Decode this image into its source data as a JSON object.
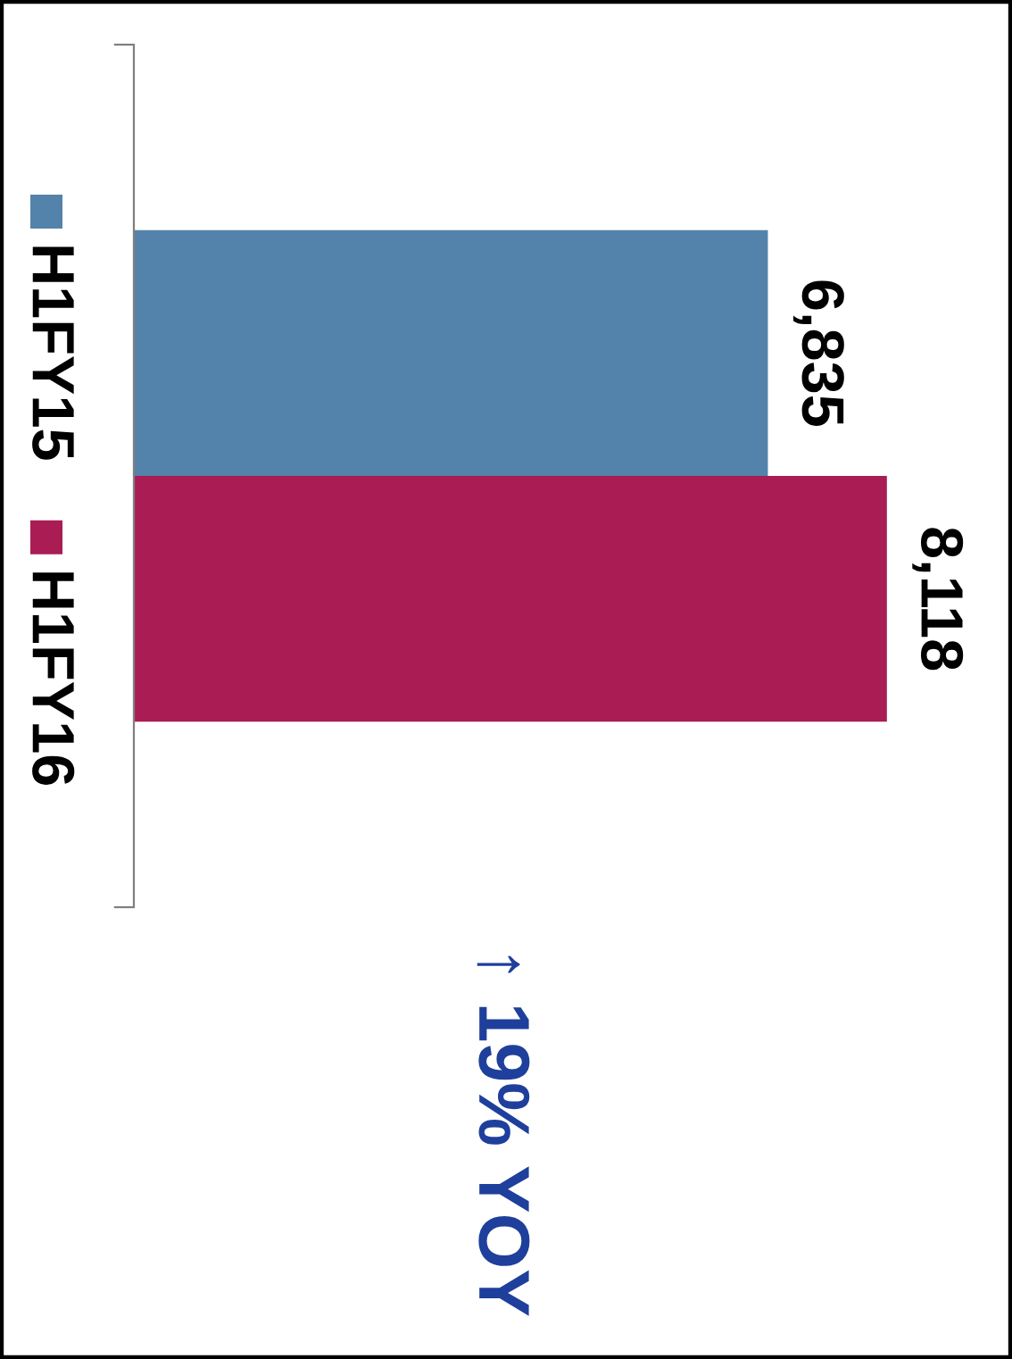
{
  "chart_data": {
    "type": "bar",
    "orientation": "horizontal",
    "categories": [
      null
    ],
    "series": [
      {
        "name": "H1FY15",
        "color": "#5383aa",
        "values": [
          6835
        ],
        "value_labels": [
          "6,835"
        ]
      },
      {
        "name": "H1FY16",
        "color": "#a91c54",
        "values": [
          8118
        ],
        "value_labels": [
          "8,118"
        ]
      }
    ],
    "legend": "left",
    "tick_labels": false,
    "annotations": [
      "↑ 19% YOY"
    ]
  }
}
